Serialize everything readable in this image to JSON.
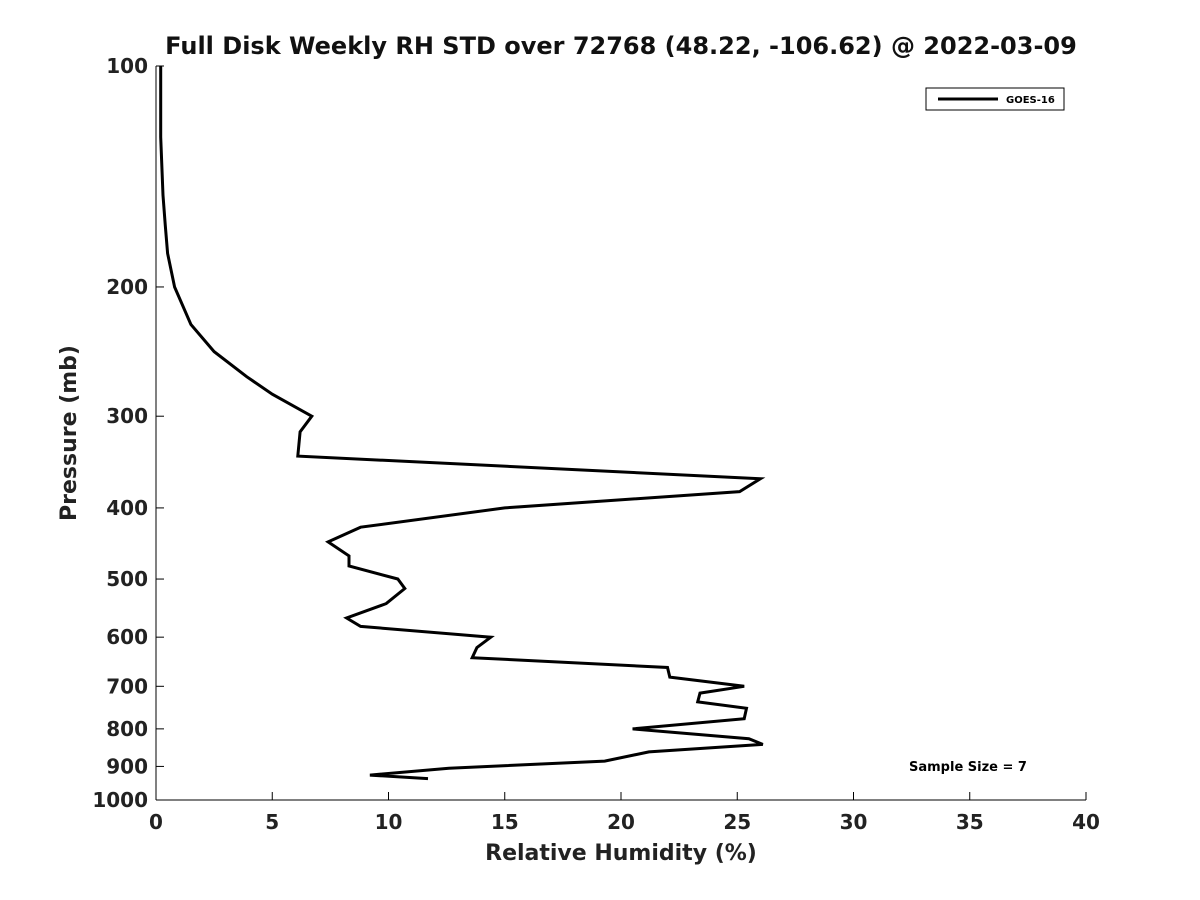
{
  "chart_data": {
    "type": "line",
    "title": "Full Disk Weekly RH STD over 72768 (48.22, -106.62) @ 2022-03-09",
    "xlabel": "Relative Humidity (%)",
    "ylabel": "Pressure (mb)",
    "xlim": [
      0,
      40
    ],
    "ylim": [
      1000,
      100
    ],
    "y_scale": "log",
    "y_reversed": true,
    "x_ticks": [
      0,
      5,
      10,
      15,
      20,
      25,
      30,
      35,
      40
    ],
    "x_tick_labels": [
      "0",
      "5",
      "10",
      "15",
      "20",
      "25",
      "30",
      "35",
      "40"
    ],
    "y_ticks": [
      100,
      200,
      300,
      400,
      500,
      600,
      700,
      800,
      900,
      1000
    ],
    "y_tick_labels": [
      "100",
      "200",
      "300",
      "400",
      "500",
      "600",
      "700",
      "800",
      "900",
      "1000"
    ],
    "grid": false,
    "legend_position": "top-right",
    "series": [
      {
        "name": "GOES-16",
        "color": "#000000",
        "points": [
          [
            0.2,
            100
          ],
          [
            0.2,
            125
          ],
          [
            0.3,
            150
          ],
          [
            0.4,
            165
          ],
          [
            0.5,
            180
          ],
          [
            0.8,
            200
          ],
          [
            1.5,
            225
          ],
          [
            2.5,
            245
          ],
          [
            3.9,
            265
          ],
          [
            5.0,
            280
          ],
          [
            6.7,
            300
          ],
          [
            6.2,
            315
          ],
          [
            6.1,
            340
          ],
          [
            26.0,
            365
          ],
          [
            25.1,
            380
          ],
          [
            15.0,
            400
          ],
          [
            8.8,
            425
          ],
          [
            7.4,
            445
          ],
          [
            8.3,
            465
          ],
          [
            8.3,
            480
          ],
          [
            10.4,
            500
          ],
          [
            10.7,
            515
          ],
          [
            9.9,
            540
          ],
          [
            8.2,
            565
          ],
          [
            8.8,
            580
          ],
          [
            14.4,
            600
          ],
          [
            13.8,
            620
          ],
          [
            13.6,
            640
          ],
          [
            22.0,
            660
          ],
          [
            22.1,
            680
          ],
          [
            25.3,
            700
          ],
          [
            23.4,
            715
          ],
          [
            23.3,
            735
          ],
          [
            25.4,
            750
          ],
          [
            25.3,
            775
          ],
          [
            20.5,
            800
          ],
          [
            25.5,
            825
          ],
          [
            26.1,
            840
          ],
          [
            21.2,
            860
          ],
          [
            19.3,
            885
          ],
          [
            12.6,
            905
          ],
          [
            9.2,
            925
          ],
          [
            11.7,
            935
          ]
        ]
      }
    ],
    "annotations": [
      "Sample Size = 7"
    ]
  }
}
